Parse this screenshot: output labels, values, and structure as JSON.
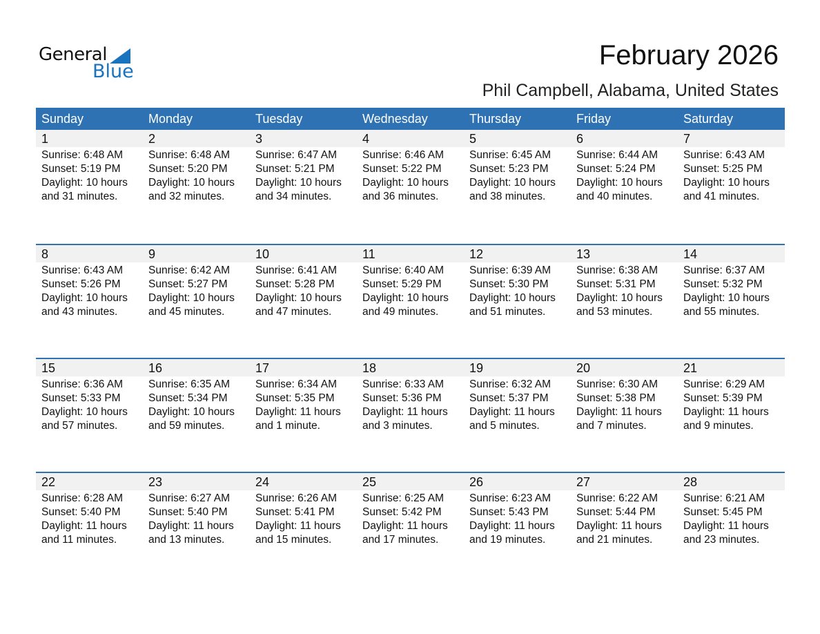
{
  "logo": {
    "text1": "General",
    "text2": "Blue"
  },
  "title": "February 2026",
  "location": "Phil Campbell, Alabama, United States",
  "colors": {
    "header": "#2e72b4",
    "logo_blue": "#1a73be",
    "date_row": "#f1f1f1"
  },
  "weekdays": [
    "Sunday",
    "Monday",
    "Tuesday",
    "Wednesday",
    "Thursday",
    "Friday",
    "Saturday"
  ],
  "weeks": [
    [
      {
        "d": "1",
        "sr": "Sunrise: 6:48 AM",
        "ss": "Sunset: 5:19 PM",
        "dl": "Daylight: 10 hours",
        "dm": "and 31 minutes."
      },
      {
        "d": "2",
        "sr": "Sunrise: 6:48 AM",
        "ss": "Sunset: 5:20 PM",
        "dl": "Daylight: 10 hours",
        "dm": "and 32 minutes."
      },
      {
        "d": "3",
        "sr": "Sunrise: 6:47 AM",
        "ss": "Sunset: 5:21 PM",
        "dl": "Daylight: 10 hours",
        "dm": "and 34 minutes."
      },
      {
        "d": "4",
        "sr": "Sunrise: 6:46 AM",
        "ss": "Sunset: 5:22 PM",
        "dl": "Daylight: 10 hours",
        "dm": "and 36 minutes."
      },
      {
        "d": "5",
        "sr": "Sunrise: 6:45 AM",
        "ss": "Sunset: 5:23 PM",
        "dl": "Daylight: 10 hours",
        "dm": "and 38 minutes."
      },
      {
        "d": "6",
        "sr": "Sunrise: 6:44 AM",
        "ss": "Sunset: 5:24 PM",
        "dl": "Daylight: 10 hours",
        "dm": "and 40 minutes."
      },
      {
        "d": "7",
        "sr": "Sunrise: 6:43 AM",
        "ss": "Sunset: 5:25 PM",
        "dl": "Daylight: 10 hours",
        "dm": "and 41 minutes."
      }
    ],
    [
      {
        "d": "8",
        "sr": "Sunrise: 6:43 AM",
        "ss": "Sunset: 5:26 PM",
        "dl": "Daylight: 10 hours",
        "dm": "and 43 minutes."
      },
      {
        "d": "9",
        "sr": "Sunrise: 6:42 AM",
        "ss": "Sunset: 5:27 PM",
        "dl": "Daylight: 10 hours",
        "dm": "and 45 minutes."
      },
      {
        "d": "10",
        "sr": "Sunrise: 6:41 AM",
        "ss": "Sunset: 5:28 PM",
        "dl": "Daylight: 10 hours",
        "dm": "and 47 minutes."
      },
      {
        "d": "11",
        "sr": "Sunrise: 6:40 AM",
        "ss": "Sunset: 5:29 PM",
        "dl": "Daylight: 10 hours",
        "dm": "and 49 minutes."
      },
      {
        "d": "12",
        "sr": "Sunrise: 6:39 AM",
        "ss": "Sunset: 5:30 PM",
        "dl": "Daylight: 10 hours",
        "dm": "and 51 minutes."
      },
      {
        "d": "13",
        "sr": "Sunrise: 6:38 AM",
        "ss": "Sunset: 5:31 PM",
        "dl": "Daylight: 10 hours",
        "dm": "and 53 minutes."
      },
      {
        "d": "14",
        "sr": "Sunrise: 6:37 AM",
        "ss": "Sunset: 5:32 PM",
        "dl": "Daylight: 10 hours",
        "dm": "and 55 minutes."
      }
    ],
    [
      {
        "d": "15",
        "sr": "Sunrise: 6:36 AM",
        "ss": "Sunset: 5:33 PM",
        "dl": "Daylight: 10 hours",
        "dm": "and 57 minutes."
      },
      {
        "d": "16",
        "sr": "Sunrise: 6:35 AM",
        "ss": "Sunset: 5:34 PM",
        "dl": "Daylight: 10 hours",
        "dm": "and 59 minutes."
      },
      {
        "d": "17",
        "sr": "Sunrise: 6:34 AM",
        "ss": "Sunset: 5:35 PM",
        "dl": "Daylight: 11 hours",
        "dm": "and 1 minute."
      },
      {
        "d": "18",
        "sr": "Sunrise: 6:33 AM",
        "ss": "Sunset: 5:36 PM",
        "dl": "Daylight: 11 hours",
        "dm": "and 3 minutes."
      },
      {
        "d": "19",
        "sr": "Sunrise: 6:32 AM",
        "ss": "Sunset: 5:37 PM",
        "dl": "Daylight: 11 hours",
        "dm": "and 5 minutes."
      },
      {
        "d": "20",
        "sr": "Sunrise: 6:30 AM",
        "ss": "Sunset: 5:38 PM",
        "dl": "Daylight: 11 hours",
        "dm": "and 7 minutes."
      },
      {
        "d": "21",
        "sr": "Sunrise: 6:29 AM",
        "ss": "Sunset: 5:39 PM",
        "dl": "Daylight: 11 hours",
        "dm": "and 9 minutes."
      }
    ],
    [
      {
        "d": "22",
        "sr": "Sunrise: 6:28 AM",
        "ss": "Sunset: 5:40 PM",
        "dl": "Daylight: 11 hours",
        "dm": "and 11 minutes."
      },
      {
        "d": "23",
        "sr": "Sunrise: 6:27 AM",
        "ss": "Sunset: 5:40 PM",
        "dl": "Daylight: 11 hours",
        "dm": "and 13 minutes."
      },
      {
        "d": "24",
        "sr": "Sunrise: 6:26 AM",
        "ss": "Sunset: 5:41 PM",
        "dl": "Daylight: 11 hours",
        "dm": "and 15 minutes."
      },
      {
        "d": "25",
        "sr": "Sunrise: 6:25 AM",
        "ss": "Sunset: 5:42 PM",
        "dl": "Daylight: 11 hours",
        "dm": "and 17 minutes."
      },
      {
        "d": "26",
        "sr": "Sunrise: 6:23 AM",
        "ss": "Sunset: 5:43 PM",
        "dl": "Daylight: 11 hours",
        "dm": "and 19 minutes."
      },
      {
        "d": "27",
        "sr": "Sunrise: 6:22 AM",
        "ss": "Sunset: 5:44 PM",
        "dl": "Daylight: 11 hours",
        "dm": "and 21 minutes."
      },
      {
        "d": "28",
        "sr": "Sunrise: 6:21 AM",
        "ss": "Sunset: 5:45 PM",
        "dl": "Daylight: 11 hours",
        "dm": "and 23 minutes."
      }
    ]
  ]
}
